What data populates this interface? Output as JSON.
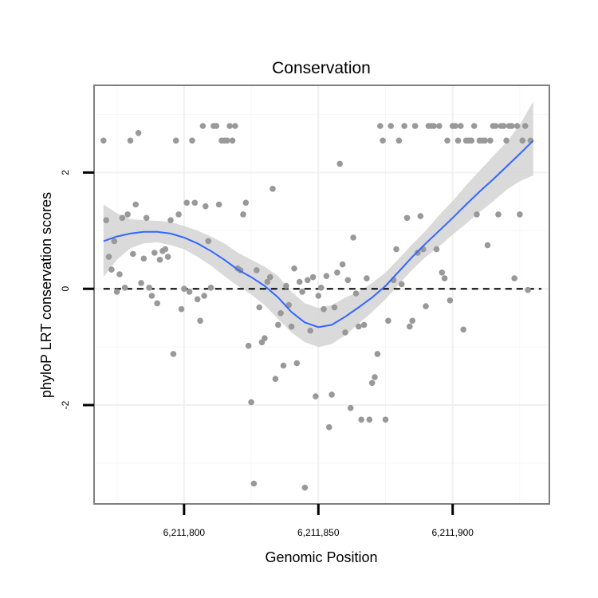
{
  "chart_data": {
    "type": "scatter",
    "title": "Conservation",
    "xlabel": "Genomic Position",
    "ylabel": "phyloP LRT conservation scores",
    "xlim": [
      6211766.5,
      6211936
    ],
    "ylim": [
      -3.7,
      3.5
    ],
    "x_ticks": [
      6211800,
      6211850,
      6211900
    ],
    "x_tick_labels": [
      "6,211,800",
      "6,211,850",
      "6,211,900"
    ],
    "y_ticks": [
      -2,
      0,
      2
    ],
    "y_tick_labels": [
      "-2",
      "0",
      "2"
    ],
    "reference_line": {
      "y": 0,
      "style": "dashed"
    },
    "colors": {
      "points": "#999999",
      "smooth_line": "#3366ff",
      "ribbon": "#d3d3d3",
      "dashed_line": "#000000"
    },
    "points": [
      [
        6211770,
        2.55
      ],
      [
        6211771,
        1.18
      ],
      [
        6211772,
        0.55
      ],
      [
        6211773,
        0.33
      ],
      [
        6211774,
        0.82
      ],
      [
        6211775,
        -0.05
      ],
      [
        6211776,
        0.25
      ],
      [
        6211777,
        1.22
      ],
      [
        6211778,
        0.02
      ],
      [
        6211779,
        1.28
      ],
      [
        6211780,
        2.55
      ],
      [
        6211781,
        0.6
      ],
      [
        6211782,
        1.45
      ],
      [
        6211783,
        2.68
      ],
      [
        6211784,
        0.1
      ],
      [
        6211785,
        0.52
      ],
      [
        6211786,
        1.22
      ],
      [
        6211787,
        0.02
      ],
      [
        6211788,
        -0.12
      ],
      [
        6211789,
        0.62
      ],
      [
        6211790,
        -0.25
      ],
      [
        6211791,
        0.5
      ],
      [
        6211792,
        0.65
      ],
      [
        6211793,
        0.68
      ],
      [
        6211794,
        0.55
      ],
      [
        6211795,
        1.18
      ],
      [
        6211796,
        -1.12
      ],
      [
        6211797,
        2.55
      ],
      [
        6211798,
        1.28
      ],
      [
        6211799,
        -0.35
      ],
      [
        6211800,
        0.0
      ],
      [
        6211801,
        1.48
      ],
      [
        6211802,
        -0.05
      ],
      [
        6211803,
        2.55
      ],
      [
        6211804,
        1.48
      ],
      [
        6211805,
        -0.18
      ],
      [
        6211806,
        -0.55
      ],
      [
        6211807,
        2.8
      ],
      [
        6211807.5,
        -0.12
      ],
      [
        6211808,
        1.42
      ],
      [
        6211809,
        0.82
      ],
      [
        6211810,
        0.02
      ],
      [
        6211811,
        2.8
      ],
      [
        6211812,
        2.8
      ],
      [
        6211813,
        1.45
      ],
      [
        6211814,
        2.55
      ],
      [
        6211815,
        2.55
      ],
      [
        6211816,
        2.55
      ],
      [
        6211817,
        2.8
      ],
      [
        6211818,
        2.55
      ],
      [
        6211819,
        2.8
      ],
      [
        6211820,
        0.35
      ],
      [
        6211821,
        0.32
      ],
      [
        6211822,
        1.28
      ],
      [
        6211823,
        1.48
      ],
      [
        6211824,
        -0.98
      ],
      [
        6211825,
        -1.95
      ],
      [
        6211826,
        -3.35
      ],
      [
        6211827,
        0.32
      ],
      [
        6211828,
        -0.32
      ],
      [
        6211829,
        -0.92
      ],
      [
        6211830,
        -0.85
      ],
      [
        6211831,
        0.12
      ],
      [
        6211832,
        0.2
      ],
      [
        6211833,
        1.72
      ],
      [
        6211834,
        -1.55
      ],
      [
        6211835,
        -0.62
      ],
      [
        6211836,
        -0.42
      ],
      [
        6211837,
        -1.32
      ],
      [
        6211838,
        0.05
      ],
      [
        6211839,
        -0.28
      ],
      [
        6211840,
        -0.65
      ],
      [
        6211841,
        0.35
      ],
      [
        6211842,
        -1.28
      ],
      [
        6211843,
        0.12
      ],
      [
        6211844,
        -0.05
      ],
      [
        6211845,
        -3.42
      ],
      [
        6211846,
        0.15
      ],
      [
        6211847,
        -0.72
      ],
      [
        6211848,
        0.2
      ],
      [
        6211849,
        -1.85
      ],
      [
        6211850,
        -0.12
      ],
      [
        6211851,
        0.02
      ],
      [
        6211852,
        -0.35
      ],
      [
        6211853,
        0.22
      ],
      [
        6211854,
        -2.38
      ],
      [
        6211855,
        -1.82
      ],
      [
        6211856,
        -0.32
      ],
      [
        6211857,
        0.28
      ],
      [
        6211858,
        2.15
      ],
      [
        6211859,
        0.42
      ],
      [
        6211860,
        -0.75
      ],
      [
        6211861,
        0.15
      ],
      [
        6211862,
        -2.05
      ],
      [
        6211863,
        0.88
      ],
      [
        6211864,
        -0.08
      ],
      [
        6211865,
        -0.65
      ],
      [
        6211866,
        -2.25
      ],
      [
        6211867,
        -0.62
      ],
      [
        6211868,
        0.18
      ],
      [
        6211869,
        -2.25
      ],
      [
        6211870,
        -1.62
      ],
      [
        6211871,
        -1.52
      ],
      [
        6211872,
        -1.12
      ],
      [
        6211873,
        2.8
      ],
      [
        6211874,
        2.55
      ],
      [
        6211875,
        -2.25
      ],
      [
        6211876,
        -0.55
      ],
      [
        6211877,
        2.8
      ],
      [
        6211878,
        0.15
      ],
      [
        6211879,
        0.68
      ],
      [
        6211880,
        2.55
      ],
      [
        6211881,
        0.08
      ],
      [
        6211882,
        2.8
      ],
      [
        6211883,
        1.22
      ],
      [
        6211884,
        -0.65
      ],
      [
        6211885,
        -0.55
      ],
      [
        6211886,
        2.8
      ],
      [
        6211887,
        0.62
      ],
      [
        6211888,
        1.25
      ],
      [
        6211889,
        0.68
      ],
      [
        6211890,
        -0.3
      ],
      [
        6211891,
        2.8
      ],
      [
        6211892,
        2.8
      ],
      [
        6211893,
        2.8
      ],
      [
        6211894,
        0.68
      ],
      [
        6211895,
        2.8
      ],
      [
        6211896,
        0.28
      ],
      [
        6211897,
        0.18
      ],
      [
        6211898,
        2.55
      ],
      [
        6211899,
        -0.2
      ],
      [
        6211900,
        2.8
      ],
      [
        6211901,
        2.8
      ],
      [
        6211902,
        2.55
      ],
      [
        6211903,
        2.8
      ],
      [
        6211904,
        -0.7
      ],
      [
        6211905,
        2.55
      ],
      [
        6211906,
        2.55
      ],
      [
        6211907,
        2.55
      ],
      [
        6211908,
        2.8
      ],
      [
        6211909,
        1.28
      ],
      [
        6211910,
        2.55
      ],
      [
        6211911,
        2.55
      ],
      [
        6211912,
        2.55
      ],
      [
        6211913,
        0.75
      ],
      [
        6211914,
        2.55
      ],
      [
        6211915,
        2.8
      ],
      [
        6211916,
        2.8
      ],
      [
        6211917,
        1.28
      ],
      [
        6211918,
        2.8
      ],
      [
        6211919,
        2.8
      ],
      [
        6211920,
        2.55
      ],
      [
        6211921,
        2.8
      ],
      [
        6211922,
        2.8
      ],
      [
        6211923,
        0.18
      ],
      [
        6211924,
        2.8
      ],
      [
        6211925,
        1.28
      ],
      [
        6211926,
        2.55
      ],
      [
        6211927,
        2.8
      ],
      [
        6211928,
        -0.02
      ],
      [
        6211929,
        2.55
      ]
    ],
    "smooth_x": [
      6211770,
      6211775,
      6211780,
      6211785,
      6211790,
      6211795,
      6211800,
      6211805,
      6211810,
      6211815,
      6211820,
      6211825,
      6211830,
      6211835,
      6211840,
      6211845,
      6211850,
      6211855,
      6211860,
      6211865,
      6211870,
      6211875,
      6211880,
      6211885,
      6211890,
      6211895,
      6211900,
      6211905,
      6211910,
      6211915,
      6211920,
      6211925,
      6211930
    ],
    "smooth_y": [
      0.82,
      0.9,
      0.95,
      0.98,
      0.98,
      0.95,
      0.88,
      0.78,
      0.65,
      0.5,
      0.33,
      0.2,
      0.05,
      -0.15,
      -0.4,
      -0.58,
      -0.66,
      -0.62,
      -0.48,
      -0.32,
      -0.15,
      0.05,
      0.3,
      0.55,
      0.78,
      1.0,
      1.22,
      1.45,
      1.67,
      1.88,
      2.1,
      2.32,
      2.55
    ],
    "smooth_lower": [
      0.2,
      0.5,
      0.7,
      0.78,
      0.8,
      0.75,
      0.68,
      0.55,
      0.4,
      0.22,
      0.05,
      -0.1,
      -0.28,
      -0.52,
      -0.75,
      -0.92,
      -1.0,
      -0.95,
      -0.8,
      -0.6,
      -0.4,
      -0.18,
      0.08,
      0.33,
      0.55,
      0.73,
      0.93,
      1.12,
      1.32,
      1.5,
      1.7,
      1.85,
      1.95
    ],
    "smooth_upper": [
      1.45,
      1.3,
      1.2,
      1.18,
      1.17,
      1.15,
      1.08,
      1.0,
      0.9,
      0.78,
      0.62,
      0.5,
      0.38,
      0.22,
      -0.05,
      -0.25,
      -0.33,
      -0.28,
      -0.15,
      -0.05,
      0.1,
      0.28,
      0.52,
      0.77,
      1.0,
      1.27,
      1.51,
      1.78,
      2.03,
      2.28,
      2.52,
      2.82,
      3.22
    ]
  }
}
